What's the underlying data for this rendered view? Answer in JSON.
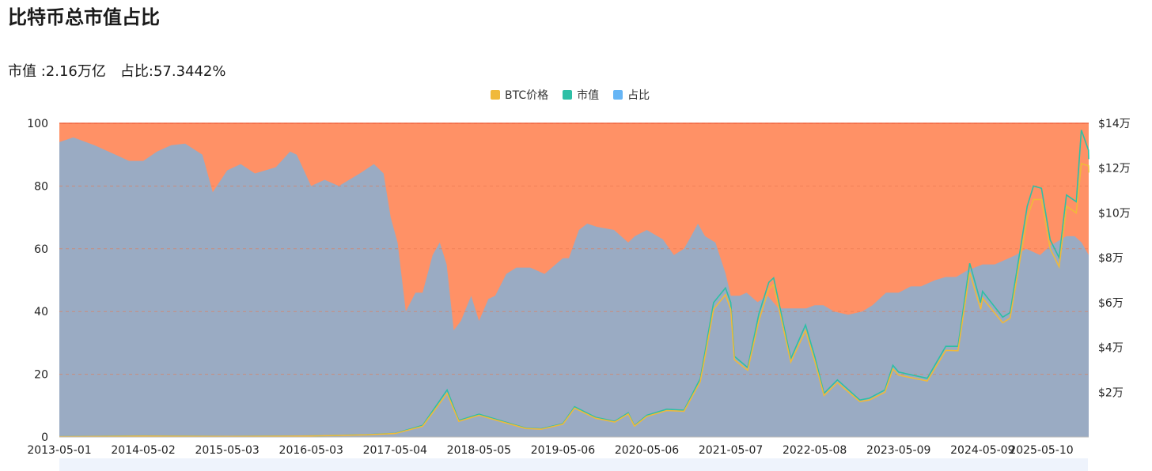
{
  "title": "比特币总市值占比",
  "summary": {
    "market_cap_label": "市值 :",
    "market_cap_value": "2.16万亿",
    "share_label": "占比:",
    "share_value": "57.3442%"
  },
  "legend": [
    {
      "label": "BTC价格",
      "color": "#f0b93a"
    },
    {
      "label": "市值",
      "color": "#2ebfa6"
    },
    {
      "label": "占比",
      "color": "#66b5f5"
    }
  ],
  "chart_data": {
    "type": "area",
    "x_ticks": [
      "2013-05-01",
      "2014-05-02",
      "2015-05-03",
      "2016-05-03",
      "2017-05-04",
      "2018-05-05",
      "2019-05-06",
      "2020-05-06",
      "2021-05-07",
      "2022-05-08",
      "2023-05-09",
      "2024-05-09",
      "2025-05-10"
    ],
    "left_axis": {
      "ticks": [
        "0",
        "20",
        "40",
        "60",
        "80",
        "100"
      ],
      "range": [
        0,
        100
      ]
    },
    "right_axis": {
      "ticks": [
        "$2万",
        "$4万",
        "$6万",
        "$8万",
        "$10万",
        "$12万",
        "$14万"
      ],
      "range": [
        0,
        140000
      ]
    },
    "x_range": [
      "2013-05-01",
      "2025-08-15"
    ],
    "colors": {
      "dominance_fill": "#9aabc3",
      "remainder_fill": "#ff9166",
      "top_line": "#f2603a",
      "price_line": "#f0b93a",
      "cap_line": "#2ebfa6"
    },
    "series": [
      {
        "name": "占比",
        "axis": "left",
        "points": [
          [
            "2013-05-01",
            94
          ],
          [
            "2013-07-01",
            95.5
          ],
          [
            "2013-10-01",
            93
          ],
          [
            "2014-01-01",
            90
          ],
          [
            "2014-03-01",
            88
          ],
          [
            "2014-05-02",
            88
          ],
          [
            "2014-07-01",
            91
          ],
          [
            "2014-09-01",
            93
          ],
          [
            "2014-11-01",
            93.5
          ],
          [
            "2015-01-15",
            90
          ],
          [
            "2015-03-01",
            78
          ],
          [
            "2015-05-03",
            85
          ],
          [
            "2015-07-01",
            87
          ],
          [
            "2015-09-01",
            84
          ],
          [
            "2015-12-01",
            86
          ],
          [
            "2016-02-01",
            91
          ],
          [
            "2016-03-01",
            90
          ],
          [
            "2016-05-03",
            80
          ],
          [
            "2016-07-01",
            82
          ],
          [
            "2016-09-01",
            80
          ],
          [
            "2016-12-01",
            84
          ],
          [
            "2017-02-01",
            87
          ],
          [
            "2017-03-15",
            84
          ],
          [
            "2017-04-15",
            70
          ],
          [
            "2017-05-15",
            62
          ],
          [
            "2017-06-20",
            40
          ],
          [
            "2017-08-01",
            46
          ],
          [
            "2017-09-01",
            46
          ],
          [
            "2017-10-15",
            58
          ],
          [
            "2017-11-15",
            62
          ],
          [
            "2017-12-15",
            55
          ],
          [
            "2018-01-15",
            34
          ],
          [
            "2018-02-15",
            37
          ],
          [
            "2018-04-01",
            45
          ],
          [
            "2018-05-05",
            37
          ],
          [
            "2018-06-15",
            44
          ],
          [
            "2018-07-15",
            45
          ],
          [
            "2018-09-01",
            52
          ],
          [
            "2018-10-15",
            54
          ],
          [
            "2018-12-15",
            54
          ],
          [
            "2019-02-15",
            52
          ],
          [
            "2019-05-06",
            57
          ],
          [
            "2019-06-01",
            57
          ],
          [
            "2019-07-15",
            66
          ],
          [
            "2019-08-20",
            68
          ],
          [
            "2019-10-01",
            67
          ],
          [
            "2019-12-15",
            66
          ],
          [
            "2020-02-15",
            62
          ],
          [
            "2020-03-15",
            64
          ],
          [
            "2020-05-06",
            66
          ],
          [
            "2020-07-15",
            63
          ],
          [
            "2020-09-01",
            58
          ],
          [
            "2020-10-15",
            60
          ],
          [
            "2020-11-15",
            64
          ],
          [
            "2020-12-15",
            68
          ],
          [
            "2021-01-15",
            64
          ],
          [
            "2021-03-01",
            62
          ],
          [
            "2021-04-15",
            52
          ],
          [
            "2021-05-07",
            45
          ],
          [
            "2021-06-15",
            45
          ],
          [
            "2021-07-15",
            46
          ],
          [
            "2021-09-01",
            43
          ],
          [
            "2021-10-15",
            45
          ],
          [
            "2021-12-01",
            41
          ],
          [
            "2022-02-01",
            41
          ],
          [
            "2022-04-01",
            41
          ],
          [
            "2022-05-08",
            42
          ],
          [
            "2022-06-15",
            42
          ],
          [
            "2022-08-01",
            40
          ],
          [
            "2022-10-01",
            39
          ],
          [
            "2022-12-01",
            40
          ],
          [
            "2023-01-15",
            42
          ],
          [
            "2023-03-15",
            46
          ],
          [
            "2023-05-09",
            46
          ],
          [
            "2023-07-01",
            48
          ],
          [
            "2023-08-15",
            48
          ],
          [
            "2023-10-15",
            50
          ],
          [
            "2023-12-01",
            51
          ],
          [
            "2024-01-15",
            51
          ],
          [
            "2024-03-01",
            53
          ],
          [
            "2024-05-09",
            55
          ],
          [
            "2024-07-01",
            55
          ],
          [
            "2024-09-01",
            57
          ],
          [
            "2024-10-01",
            58
          ],
          [
            "2024-11-15",
            60
          ],
          [
            "2025-01-15",
            58
          ],
          [
            "2025-03-01",
            61
          ],
          [
            "2025-05-10",
            64
          ],
          [
            "2025-06-15",
            64
          ],
          [
            "2025-07-15",
            62
          ],
          [
            "2025-08-15",
            58
          ]
        ]
      },
      {
        "name": "BTC价格",
        "axis": "right",
        "points": [
          [
            "2013-05-01",
            120
          ],
          [
            "2014-05-02",
            440
          ],
          [
            "2015-05-03",
            235
          ],
          [
            "2016-05-03",
            450
          ],
          [
            "2017-01-01",
            1000
          ],
          [
            "2017-05-04",
            1550
          ],
          [
            "2017-09-01",
            4800
          ],
          [
            "2017-12-17",
            19500
          ],
          [
            "2018-02-06",
            7000
          ],
          [
            "2018-05-05",
            9700
          ],
          [
            "2018-11-25",
            3800
          ],
          [
            "2019-02-01",
            3500
          ],
          [
            "2019-05-06",
            5700
          ],
          [
            "2019-06-26",
            12900
          ],
          [
            "2019-09-25",
            8400
          ],
          [
            "2019-12-18",
            6700
          ],
          [
            "2020-02-15",
            10300
          ],
          [
            "2020-03-13",
            4900
          ],
          [
            "2020-05-06",
            9200
          ],
          [
            "2020-08-01",
            11800
          ],
          [
            "2020-10-15",
            11500
          ],
          [
            "2020-12-25",
            24700
          ],
          [
            "2021-01-15",
            36000
          ],
          [
            "2021-02-21",
            57000
          ],
          [
            "2021-04-14",
            63500
          ],
          [
            "2021-05-07",
            57000
          ],
          [
            "2021-05-23",
            34500
          ],
          [
            "2021-07-20",
            29800
          ],
          [
            "2021-09-07",
            52000
          ],
          [
            "2021-10-20",
            66000
          ],
          [
            "2021-11-10",
            68000
          ],
          [
            "2022-01-24",
            33500
          ],
          [
            "2022-03-29",
            47500
          ],
          [
            "2022-05-08",
            34000
          ],
          [
            "2022-06-18",
            18500
          ],
          [
            "2022-08-15",
            24300
          ],
          [
            "2022-11-21",
            15800
          ],
          [
            "2023-01-01",
            16500
          ],
          [
            "2023-03-10",
            20000
          ],
          [
            "2023-04-14",
            30400
          ],
          [
            "2023-05-09",
            27600
          ],
          [
            "2023-09-11",
            25000
          ],
          [
            "2023-12-01",
            38700
          ],
          [
            "2024-01-23",
            38500
          ],
          [
            "2024-03-14",
            73500
          ],
          [
            "2024-05-01",
            57000
          ],
          [
            "2024-05-09",
            62000
          ],
          [
            "2024-08-05",
            51000
          ],
          [
            "2024-09-06",
            53000
          ],
          [
            "2024-11-20",
            98000
          ],
          [
            "2024-12-17",
            106000
          ],
          [
            "2025-01-21",
            106000
          ],
          [
            "2025-02-28",
            84000
          ],
          [
            "2025-04-08",
            76000
          ],
          [
            "2025-05-10",
            103000
          ],
          [
            "2025-06-22",
            100000
          ],
          [
            "2025-07-14",
            122000
          ],
          [
            "2025-08-14",
            121000
          ],
          [
            "2025-08-15",
            118000
          ]
        ]
      },
      {
        "name": "市值",
        "axis": "right",
        "points": [
          [
            "2013-05-01",
            120
          ],
          [
            "2014-05-02",
            460
          ],
          [
            "2015-05-03",
            240
          ],
          [
            "2016-05-03",
            460
          ],
          [
            "2017-01-01",
            1050
          ],
          [
            "2017-05-04",
            1650
          ],
          [
            "2017-09-01",
            5200
          ],
          [
            "2017-12-17",
            21000
          ],
          [
            "2018-02-06",
            7400
          ],
          [
            "2018-05-05",
            10200
          ],
          [
            "2018-11-25",
            4000
          ],
          [
            "2019-02-01",
            3700
          ],
          [
            "2019-05-06",
            6000
          ],
          [
            "2019-06-26",
            13500
          ],
          [
            "2019-09-25",
            8800
          ],
          [
            "2019-12-18",
            7000
          ],
          [
            "2020-02-15",
            10800
          ],
          [
            "2020-03-13",
            5100
          ],
          [
            "2020-05-06",
            9700
          ],
          [
            "2020-08-01",
            12400
          ],
          [
            "2020-10-15",
            12000
          ],
          [
            "2020-12-25",
            26000
          ],
          [
            "2021-01-15",
            38000
          ],
          [
            "2021-02-21",
            60000
          ],
          [
            "2021-04-14",
            66500
          ],
          [
            "2021-05-07",
            60000
          ],
          [
            "2021-05-23",
            36000
          ],
          [
            "2021-07-20",
            31000
          ],
          [
            "2021-09-07",
            55000
          ],
          [
            "2021-10-20",
            69000
          ],
          [
            "2021-11-10",
            71000
          ],
          [
            "2022-01-24",
            35000
          ],
          [
            "2022-03-29",
            50000
          ],
          [
            "2022-05-08",
            36000
          ],
          [
            "2022-06-18",
            19500
          ],
          [
            "2022-08-15",
            25500
          ],
          [
            "2022-11-21",
            16500
          ],
          [
            "2023-01-01",
            17300
          ],
          [
            "2023-03-10",
            21000
          ],
          [
            "2023-04-14",
            32000
          ],
          [
            "2023-05-09",
            29000
          ],
          [
            "2023-09-11",
            26200
          ],
          [
            "2023-12-01",
            40500
          ],
          [
            "2024-01-23",
            40500
          ],
          [
            "2024-03-14",
            77500
          ],
          [
            "2024-05-01",
            60000
          ],
          [
            "2024-05-09",
            65000
          ],
          [
            "2024-08-05",
            53500
          ],
          [
            "2024-09-06",
            55500
          ],
          [
            "2024-11-20",
            103000
          ],
          [
            "2024-12-17",
            112000
          ],
          [
            "2025-01-21",
            111000
          ],
          [
            "2025-02-28",
            88000
          ],
          [
            "2025-04-08",
            80000
          ],
          [
            "2025-05-10",
            108000
          ],
          [
            "2025-06-22",
            105000
          ],
          [
            "2025-07-14",
            137000
          ],
          [
            "2025-08-14",
            128000
          ],
          [
            "2025-08-15",
            124000
          ]
        ]
      }
    ]
  }
}
